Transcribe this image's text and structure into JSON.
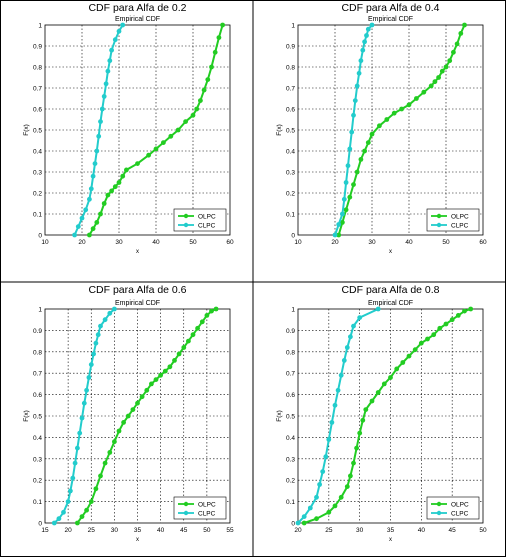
{
  "chart_data": [
    {
      "type": "line",
      "title": "CDF para Alfa de 0.2",
      "subtitle": "Empirical CDF",
      "xlabel": "x",
      "ylabel": "F(x)",
      "xlim": [
        10,
        60
      ],
      "ylim": [
        0,
        1
      ],
      "xticks": [
        10,
        20,
        30,
        40,
        50,
        60
      ],
      "yticks": [
        0,
        0.1,
        0.2,
        0.3,
        0.4,
        0.5,
        0.6,
        0.7,
        0.8,
        0.9,
        1
      ],
      "grid": true,
      "legend_position": "bottom-right",
      "series": [
        {
          "name": "OLPC",
          "color": "#22cc22",
          "x": [
            22,
            23,
            24,
            25,
            26,
            27,
            28,
            29,
            30,
            31,
            32,
            35,
            38,
            40,
            42,
            44,
            46,
            48,
            50,
            51,
            52,
            53,
            54,
            55,
            56,
            57,
            58
          ],
          "y": [
            0.0,
            0.03,
            0.06,
            0.1,
            0.15,
            0.19,
            0.21,
            0.23,
            0.25,
            0.28,
            0.31,
            0.34,
            0.38,
            0.41,
            0.44,
            0.47,
            0.5,
            0.54,
            0.57,
            0.6,
            0.64,
            0.69,
            0.74,
            0.8,
            0.87,
            0.94,
            1.0
          ]
        },
        {
          "name": "CLPC",
          "color": "#22cccc",
          "x": [
            18,
            19,
            20,
            21,
            22,
            22.5,
            23,
            23.5,
            24,
            24.5,
            25,
            25.5,
            26,
            26.5,
            27,
            27.5,
            28,
            29,
            30,
            31
          ],
          "y": [
            0.0,
            0.04,
            0.08,
            0.12,
            0.17,
            0.22,
            0.28,
            0.34,
            0.4,
            0.47,
            0.54,
            0.6,
            0.66,
            0.72,
            0.78,
            0.83,
            0.88,
            0.93,
            0.97,
            1.0
          ]
        }
      ]
    },
    {
      "type": "line",
      "title": "CDF para Alfa de 0.4",
      "subtitle": "Empirical CDF",
      "xlabel": "x",
      "ylabel": "F(x)",
      "xlim": [
        10,
        60
      ],
      "ylim": [
        0,
        1
      ],
      "xticks": [
        10,
        20,
        30,
        40,
        50,
        60
      ],
      "yticks": [
        0,
        0.1,
        0.2,
        0.3,
        0.4,
        0.5,
        0.6,
        0.7,
        0.8,
        0.9,
        1
      ],
      "grid": true,
      "legend_position": "bottom-right",
      "series": [
        {
          "name": "OLPC",
          "color": "#22cc22",
          "x": [
            21,
            22,
            23,
            24,
            25,
            26,
            27,
            28,
            29,
            30,
            32,
            34,
            36,
            38,
            40,
            42,
            44,
            46,
            47,
            48,
            49,
            50,
            51,
            52,
            53,
            54,
            55
          ],
          "y": [
            0.0,
            0.06,
            0.12,
            0.18,
            0.24,
            0.3,
            0.36,
            0.4,
            0.44,
            0.48,
            0.52,
            0.55,
            0.58,
            0.6,
            0.62,
            0.65,
            0.68,
            0.71,
            0.73,
            0.75,
            0.78,
            0.8,
            0.83,
            0.87,
            0.91,
            0.96,
            1.0
          ]
        },
        {
          "name": "CLPC",
          "color": "#22cccc",
          "x": [
            20,
            21,
            22,
            22.5,
            23,
            23.5,
            24,
            24.5,
            25,
            25.5,
            26,
            26.5,
            27,
            27.5,
            28,
            28.5,
            29,
            30
          ],
          "y": [
            0.0,
            0.05,
            0.1,
            0.17,
            0.25,
            0.33,
            0.41,
            0.49,
            0.57,
            0.64,
            0.71,
            0.77,
            0.83,
            0.88,
            0.92,
            0.95,
            0.98,
            1.0
          ]
        }
      ]
    },
    {
      "type": "line",
      "title": "CDF para Alfa de 0.6",
      "subtitle": "Empirical CDF",
      "xlabel": "x",
      "ylabel": "F(x)",
      "xlim": [
        15,
        55
      ],
      "ylim": [
        0,
        1
      ],
      "xticks": [
        15,
        20,
        25,
        30,
        35,
        40,
        45,
        50,
        55
      ],
      "yticks": [
        0,
        0.1,
        0.2,
        0.3,
        0.4,
        0.5,
        0.6,
        0.7,
        0.8,
        0.9,
        1
      ],
      "grid": true,
      "legend_position": "bottom-right",
      "series": [
        {
          "name": "OLPC",
          "color": "#22cc22",
          "x": [
            22,
            23,
            24,
            25,
            26,
            27,
            28,
            29,
            30,
            31,
            32,
            33,
            34,
            35,
            36,
            37,
            38,
            39,
            40,
            41,
            42,
            43,
            44,
            45,
            46,
            47,
            48,
            49,
            50,
            51,
            52
          ],
          "y": [
            0.0,
            0.03,
            0.06,
            0.1,
            0.16,
            0.22,
            0.28,
            0.33,
            0.38,
            0.43,
            0.47,
            0.5,
            0.53,
            0.56,
            0.59,
            0.62,
            0.65,
            0.67,
            0.69,
            0.71,
            0.73,
            0.76,
            0.79,
            0.82,
            0.85,
            0.88,
            0.91,
            0.94,
            0.97,
            0.99,
            1.0
          ]
        },
        {
          "name": "CLPC",
          "color": "#22cccc",
          "x": [
            17,
            18,
            19,
            20,
            20.5,
            21,
            21.5,
            22,
            22.5,
            23,
            23.5,
            24,
            24.5,
            25,
            25.5,
            26,
            26.5,
            27,
            28,
            29,
            30
          ],
          "y": [
            0.0,
            0.02,
            0.05,
            0.1,
            0.15,
            0.21,
            0.28,
            0.35,
            0.42,
            0.49,
            0.56,
            0.62,
            0.68,
            0.74,
            0.79,
            0.84,
            0.88,
            0.92,
            0.95,
            0.98,
            1.0
          ]
        }
      ]
    },
    {
      "type": "line",
      "title": "CDF para Alfa de 0.8",
      "subtitle": "Empirical CDF",
      "xlabel": "x",
      "ylabel": "F(x)",
      "xlim": [
        20,
        50
      ],
      "ylim": [
        0,
        1
      ],
      "xticks": [
        20,
        25,
        30,
        35,
        40,
        45,
        50
      ],
      "yticks": [
        0,
        0.1,
        0.2,
        0.3,
        0.4,
        0.5,
        0.6,
        0.7,
        0.8,
        0.9,
        1
      ],
      "grid": true,
      "legend_position": "bottom-right",
      "series": [
        {
          "name": "OLPC",
          "color": "#22cc22",
          "x": [
            21,
            23,
            25,
            26,
            27,
            28,
            28.5,
            29,
            29.5,
            30,
            30.5,
            31,
            32,
            33,
            34,
            35,
            36,
            37,
            38,
            39,
            40,
            41,
            42,
            43,
            44,
            45,
            46,
            47,
            48
          ],
          "y": [
            0.0,
            0.02,
            0.05,
            0.08,
            0.12,
            0.17,
            0.22,
            0.28,
            0.35,
            0.42,
            0.48,
            0.53,
            0.57,
            0.61,
            0.65,
            0.68,
            0.72,
            0.75,
            0.78,
            0.81,
            0.84,
            0.86,
            0.88,
            0.91,
            0.93,
            0.95,
            0.97,
            0.99,
            1.0
          ]
        },
        {
          "name": "CLPC",
          "color": "#22cccc",
          "x": [
            20,
            21,
            22,
            23,
            23.5,
            24,
            24.5,
            25,
            25.5,
            26,
            26.5,
            27,
            27.5,
            28,
            28.5,
            29,
            30,
            33
          ],
          "y": [
            0.0,
            0.03,
            0.07,
            0.12,
            0.18,
            0.24,
            0.31,
            0.39,
            0.47,
            0.55,
            0.62,
            0.69,
            0.76,
            0.82,
            0.87,
            0.92,
            0.96,
            1.0
          ]
        }
      ]
    }
  ]
}
